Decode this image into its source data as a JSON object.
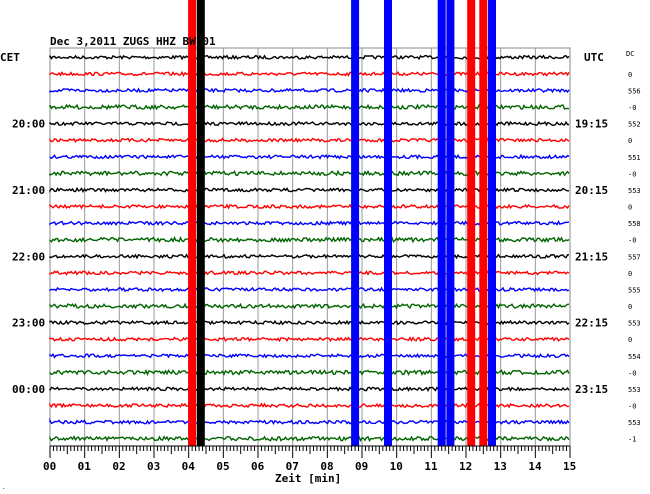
{
  "chart_data": {
    "type": "line",
    "title": "Dec 3,2011   ZUGS HHZ BW 01",
    "xlabel": "Zeit [min]",
    "left_label": "CET",
    "right_label": "UTC",
    "dc_label": "DC",
    "x_ticks": [
      "00",
      "01",
      "02",
      "03",
      "04",
      "05",
      "06",
      "07",
      "08",
      "09",
      "10",
      "11",
      "12",
      "13",
      "14",
      "15"
    ],
    "xlim": [
      0,
      15
    ],
    "left_times": [
      "20:00",
      "21:00",
      "22:00",
      "23:00",
      "00:00"
    ],
    "right_times": [
      "19:15",
      "20:15",
      "21:15",
      "22:15",
      "23:15"
    ],
    "dc_values": [
      "0",
      "556",
      "-0",
      "552",
      "0",
      "551",
      "-0",
      "553",
      "0",
      "558",
      "-0",
      "557",
      "0",
      "555",
      "0",
      "553",
      "0",
      "554",
      "-0",
      "553",
      "-0",
      "553",
      "-1"
    ],
    "trace_colors": [
      "#000000",
      "#ff0000",
      "#0000ff",
      "#006400"
    ],
    "trace_count": 24,
    "bursts": [
      {
        "minute": 4.1,
        "color": "#ff0000",
        "rows_from": 0,
        "rows_to": 23
      },
      {
        "minute": 4.35,
        "color": "#000000",
        "rows_from": 0,
        "rows_to": 23
      },
      {
        "minute": 8.8,
        "color": "#0000ff",
        "rows_from": 0,
        "rows_to": 23
      },
      {
        "minute": 9.75,
        "color": "#0000ff",
        "rows_from": 0,
        "rows_to": 23
      },
      {
        "minute": 11.3,
        "color": "#0000ff",
        "rows_from": 0,
        "rows_to": 23
      },
      {
        "minute": 11.55,
        "color": "#0000ff",
        "rows_from": 0,
        "rows_to": 23
      },
      {
        "minute": 12.15,
        "color": "#ff0000",
        "rows_from": 0,
        "rows_to": 23
      },
      {
        "minute": 12.5,
        "color": "#ff0000",
        "rows_from": 0,
        "rows_to": 23
      },
      {
        "minute": 12.75,
        "color": "#0000ff",
        "rows_from": 0,
        "rows_to": 23
      }
    ]
  }
}
